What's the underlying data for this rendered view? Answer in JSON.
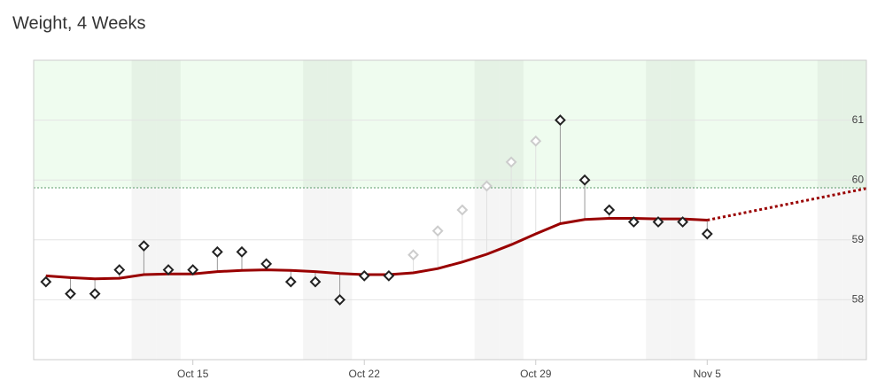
{
  "chart_data": {
    "type": "line",
    "title": "Weight, 4 Weeks",
    "x": [
      "Oct 9",
      "Oct 10",
      "Oct 11",
      "Oct 12",
      "Oct 13",
      "Oct 14",
      "Oct 15",
      "Oct 16",
      "Oct 17",
      "Oct 18",
      "Oct 19",
      "Oct 20",
      "Oct 21",
      "Oct 22",
      "Oct 23",
      "Oct 24",
      "Oct 25",
      "Oct 26",
      "Oct 27",
      "Oct 28",
      "Oct 29",
      "Oct 30",
      "Oct 31",
      "Nov 1",
      "Nov 2",
      "Nov 3",
      "Nov 4",
      "Nov 5"
    ],
    "series": [
      {
        "color": "#222222",
        "values": [
          58.3,
          58.1,
          58.1,
          58.5,
          58.9,
          58.5,
          58.5,
          58.8,
          58.8,
          58.6,
          58.3,
          58.3,
          58.0,
          58.4,
          58.4,
          null,
          null,
          null,
          null,
          null,
          null,
          61.0,
          60.0,
          59.5,
          59.3,
          59.3,
          59.3,
          59.1
        ]
      },
      {
        "color": "#cccccc",
        "values": [
          null,
          null,
          null,
          null,
          null,
          null,
          null,
          null,
          null,
          null,
          null,
          null,
          null,
          null,
          null,
          58.75,
          59.15,
          59.5,
          59.9,
          60.3,
          60.65,
          null,
          null,
          null,
          null,
          null,
          null,
          null
        ]
      },
      {
        "color": "#990000",
        "values": [
          58.4,
          58.37,
          58.35,
          58.36,
          58.42,
          58.43,
          58.43,
          58.47,
          58.49,
          58.5,
          58.49,
          58.47,
          58.44,
          58.42,
          58.42,
          58.45,
          58.52,
          58.63,
          58.76,
          58.92,
          59.1,
          59.27,
          59.34,
          59.36,
          59.36,
          59.35,
          59.35,
          59.33
        ]
      }
    ],
    "projection": {
      "color": "#990000",
      "x": [
        "Nov 5",
        "Nov 12"
      ],
      "values": [
        59.33,
        59.9
      ]
    },
    "goal": 59.87,
    "goal_color": "#5a9a6a",
    "ylim": [
      57,
      62
    ],
    "yticks": [
      58,
      59,
      60,
      61
    ],
    "xticks": [
      "Oct 15",
      "Oct 22",
      "Oct 29",
      "Nov 5"
    ],
    "grid": true
  }
}
